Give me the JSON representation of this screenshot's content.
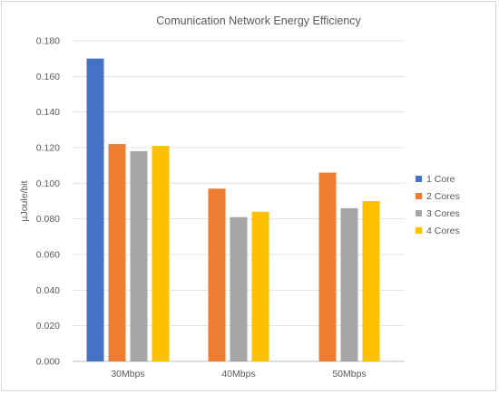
{
  "chart_data": {
    "type": "bar",
    "title": "Comunication  Network Energy Efficiency",
    "xlabel": "",
    "ylabel": "µJoule/bit",
    "categories": [
      "30Mbps",
      "40Mbps",
      "50Mbps"
    ],
    "ylim": [
      0,
      0.18
    ],
    "yticks": [
      "0.000",
      "0.020",
      "0.040",
      "0.060",
      "0.080",
      "0.100",
      "0.120",
      "0.140",
      "0.160",
      "0.180"
    ],
    "grid": true,
    "legend_position": "right",
    "series": [
      {
        "name": "1 Core",
        "color": "#4472c4",
        "values": [
          0.17,
          null,
          null
        ]
      },
      {
        "name": "2 Cores",
        "color": "#ed7d31",
        "values": [
          0.122,
          0.097,
          0.106
        ]
      },
      {
        "name": "3 Cores",
        "color": "#a5a5a5",
        "values": [
          0.118,
          0.081,
          0.086
        ]
      },
      {
        "name": "4 Cores",
        "color": "#ffc000",
        "values": [
          0.121,
          0.084,
          0.09
        ]
      }
    ]
  }
}
